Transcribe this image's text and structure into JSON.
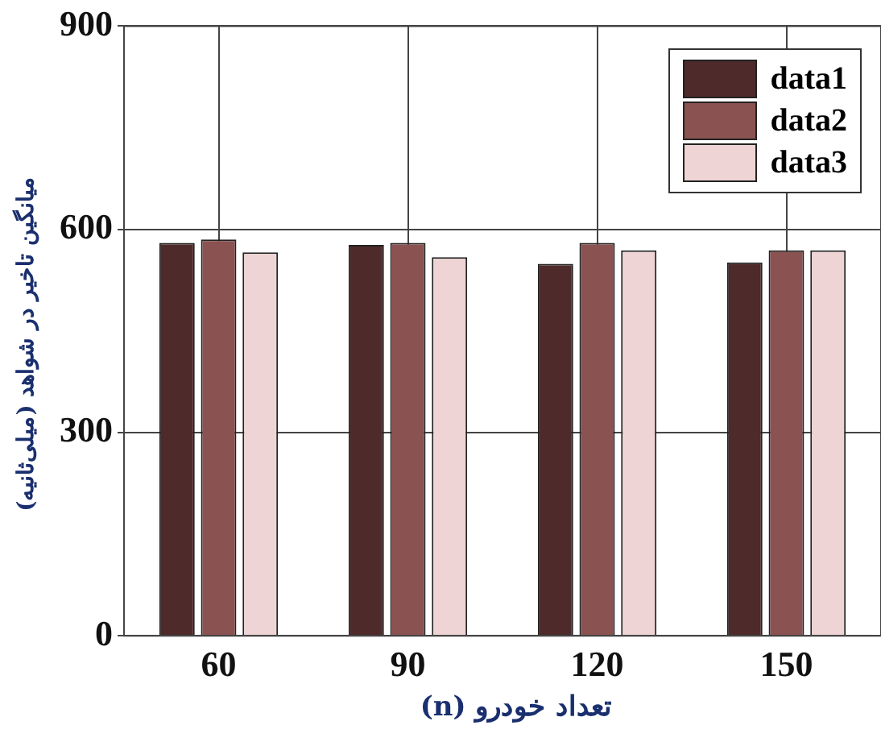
{
  "chart_data": {
    "type": "bar",
    "xlabel": "تعداد خودرو (n)",
    "ylabel": "میانگین تاخیر در شواهد (میلی‌ثانیه)",
    "categories": [
      "60",
      "90",
      "120",
      "150"
    ],
    "series": [
      {
        "name": "data1",
        "color": "#4f2a2a",
        "values": [
          580,
          577,
          549,
          551
        ]
      },
      {
        "name": "data2",
        "color": "#8b5252",
        "values": [
          585,
          580,
          580,
          569
        ]
      },
      {
        "name": "data3",
        "color": "#eed4d4",
        "values": [
          566,
          559,
          569,
          569
        ]
      }
    ],
    "ylim": [
      0,
      900
    ],
    "yticks": [
      0,
      300,
      600,
      900
    ],
    "grid": true,
    "legend": "top right"
  }
}
